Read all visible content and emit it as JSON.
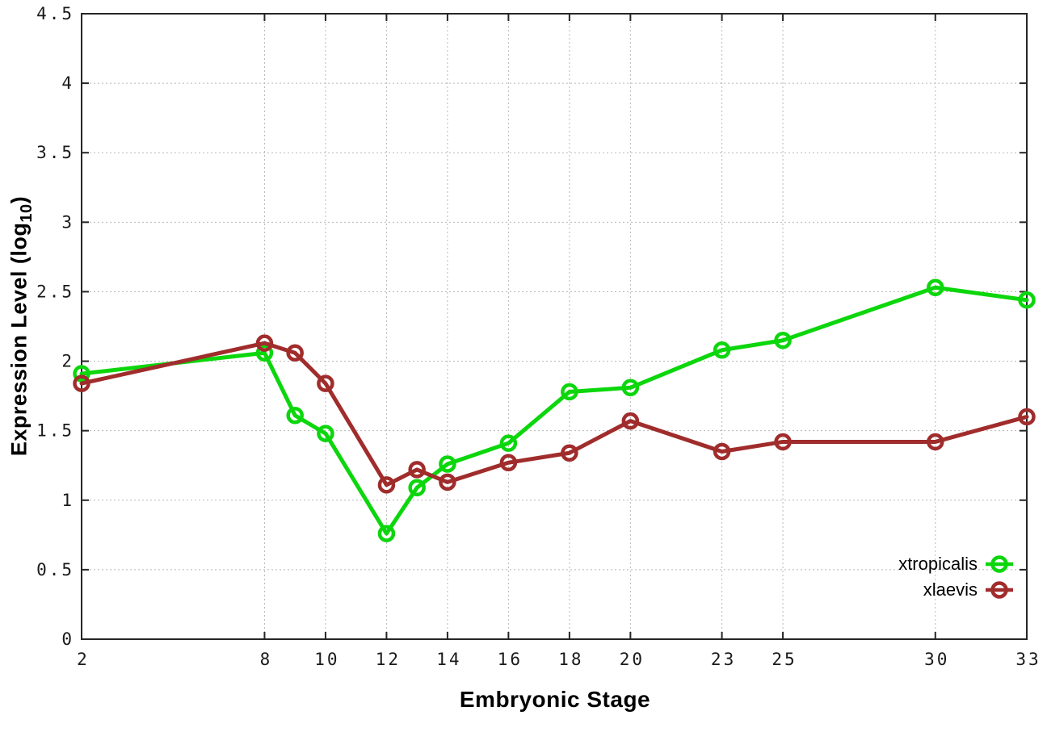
{
  "chart_data": {
    "type": "line",
    "title": "",
    "xlabel": "Embryonic Stage",
    "ylabel_main": "Expression Level (log",
    "ylabel_sub": "10",
    "ylabel_close": ")",
    "x": [
      2,
      8,
      9,
      10,
      12,
      13,
      14,
      16,
      18,
      20,
      23,
      25,
      30,
      33
    ],
    "series": [
      {
        "name": "xtropicalis",
        "color": "#0cd60c",
        "marker": "open-circle",
        "values": [
          1.91,
          2.06,
          1.61,
          1.48,
          0.76,
          1.09,
          1.26,
          1.41,
          1.78,
          1.81,
          2.08,
          2.15,
          2.53,
          2.44
        ]
      },
      {
        "name": "xlaevis",
        "color": "#a02c2c",
        "marker": "open-circle",
        "values": [
          1.84,
          2.13,
          2.06,
          1.84,
          1.11,
          1.22,
          1.13,
          1.27,
          1.34,
          1.57,
          1.35,
          1.42,
          1.42,
          1.6
        ]
      }
    ],
    "xlim": [
      2,
      33
    ],
    "ylim": [
      0,
      4.5
    ],
    "xticks": [
      2,
      8,
      10,
      12,
      14,
      16,
      18,
      20,
      23,
      25,
      30,
      33
    ],
    "xtick_labels": [
      "2",
      "8",
      "10",
      "12",
      "14",
      "16",
      "18",
      "20",
      "23",
      "25",
      "30",
      "33"
    ],
    "yticks": [
      0,
      0.5,
      1,
      1.5,
      2,
      2.5,
      3,
      3.5,
      4,
      4.5
    ],
    "ytick_labels": [
      "0",
      "0.5",
      "1",
      "1.5",
      "2",
      "2.5",
      "3",
      "3.5",
      "4",
      "4.5"
    ],
    "grid": true,
    "grid_style": "dotted",
    "legend_position": "bottom-right",
    "colors": {
      "background": "#ffffff",
      "border": "#262626",
      "grid": "#b8b8b8",
      "tick_label": "#1a1a1a"
    }
  }
}
